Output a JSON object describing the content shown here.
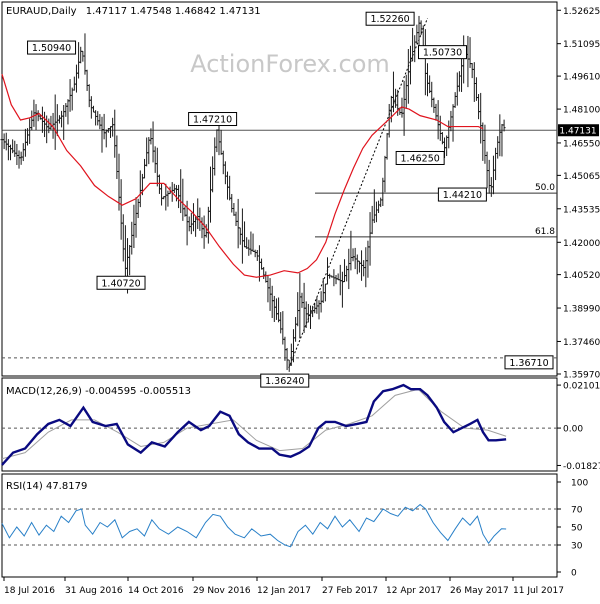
{
  "header": {
    "symbol": "EURAUD,Daily",
    "ohlc": "1.47117 1.47548 1.46842 1.47131"
  },
  "watermark": "ActionForex.com",
  "colors": {
    "background": "#ffffff",
    "bars": "#1a1a1a",
    "sma": "#e0141e",
    "macd_line": "#0a0a80",
    "macd_signal": "#a0a0a0",
    "rsi_line": "#2980c8",
    "grid": "#555555",
    "watermark": "#c8c8c8"
  },
  "chart_data": [
    {
      "type": "ohlc",
      "title": "EURAUD,Daily",
      "ylim": [
        1.3597,
        1.5282
      ],
      "yticks": [
        "1.52625",
        "1.51095",
        "1.49610",
        "1.48100",
        "1.46550",
        "1.45065",
        "1.43535",
        "1.42000",
        "1.40520",
        "1.38990",
        "1.37460",
        "1.35970"
      ],
      "current_price_label": "1.47131",
      "last_close": 1.47131,
      "moving_average": {
        "color": "#e0141e",
        "points": [
          [
            0,
            1.497
          ],
          [
            10,
            1.483
          ],
          [
            20,
            1.476
          ],
          [
            30,
            1.477
          ],
          [
            40,
            1.479
          ],
          [
            55,
            1.473
          ],
          [
            70,
            1.462
          ],
          [
            85,
            1.455
          ],
          [
            100,
            1.446
          ],
          [
            115,
            1.441
          ],
          [
            130,
            1.437
          ],
          [
            145,
            1.44
          ],
          [
            160,
            1.447
          ],
          [
            175,
            1.447
          ],
          [
            190,
            1.44
          ],
          [
            205,
            1.434
          ],
          [
            220,
            1.427
          ],
          [
            235,
            1.418
          ],
          [
            250,
            1.41
          ],
          [
            262,
            1.405
          ],
          [
            275,
            1.404
          ],
          [
            290,
            1.405
          ],
          [
            305,
            1.407
          ],
          [
            320,
            1.406
          ],
          [
            330,
            1.408
          ],
          [
            340,
            1.412
          ],
          [
            350,
            1.42
          ],
          [
            360,
            1.433
          ],
          [
            370,
            1.444
          ],
          [
            380,
            1.454
          ],
          [
            390,
            1.463
          ],
          [
            400,
            1.469
          ],
          [
            410,
            1.473
          ],
          [
            420,
            1.477
          ],
          [
            432,
            1.482
          ],
          [
            440,
            1.481
          ],
          [
            452,
            1.478
          ],
          [
            470,
            1.476
          ],
          [
            482,
            1.473
          ],
          [
            515,
            1.473
          ],
          [
            520,
            1.472
          ]
        ]
      },
      "price_path": [
        [
          0,
          1.467
        ],
        [
          20,
          1.458
        ],
        [
          35,
          1.48
        ],
        [
          50,
          1.472
        ],
        [
          65,
          1.478
        ],
        [
          78,
          1.492
        ],
        [
          86,
          1.5094
        ],
        [
          95,
          1.483
        ],
        [
          110,
          1.47
        ],
        [
          120,
          1.474
        ],
        [
          133,
          1.4072
        ],
        [
          148,
          1.44
        ],
        [
          160,
          1.47
        ],
        [
          172,
          1.44
        ],
        [
          188,
          1.445
        ],
        [
          202,
          1.427
        ],
        [
          212,
          1.432
        ],
        [
          220,
          1.421
        ],
        [
          232,
          1.4721
        ],
        [
          238,
          1.458
        ],
        [
          248,
          1.436
        ],
        [
          262,
          1.418
        ],
        [
          275,
          1.415
        ],
        [
          290,
          1.396
        ],
        [
          300,
          1.383
        ],
        [
          310,
          1.3624
        ],
        [
          322,
          1.395
        ],
        [
          330,
          1.386
        ],
        [
          345,
          1.393
        ],
        [
          352,
          1.405
        ],
        [
          368,
          1.402
        ],
        [
          378,
          1.414
        ],
        [
          392,
          1.408
        ],
        [
          400,
          1.43
        ],
        [
          410,
          1.44
        ],
        [
          420,
          1.487
        ],
        [
          432,
          1.478
        ],
        [
          440,
          1.5
        ],
        [
          452,
          1.5226
        ],
        [
          458,
          1.496
        ],
        [
          468,
          1.48
        ],
        [
          478,
          1.4625
        ],
        [
          490,
          1.487
        ],
        [
          500,
          1.5073
        ],
        [
          508,
          1.5
        ],
        [
          518,
          1.472
        ],
        [
          528,
          1.4421
        ],
        [
          534,
          1.462
        ],
        [
          540,
          1.474
        ],
        [
          545,
          1.4713
        ]
      ],
      "labels": [
        {
          "text": "1.50940",
          "x": 86,
          "y": 1.5094
        },
        {
          "text": "1.40720",
          "x": 133,
          "y": 1.4072
        },
        {
          "text": "1.47210",
          "x": 232,
          "y": 1.4721
        },
        {
          "text": "1.36240",
          "x": 310,
          "y": 1.3624
        },
        {
          "text": "1.52260",
          "x": 452,
          "y": 1.5226
        },
        {
          "text": "1.50730",
          "x": 500,
          "y": 1.5073
        },
        {
          "text": "1.46250",
          "x": 478,
          "y": 1.4625
        },
        {
          "text": "1.44210",
          "x": 528,
          "y": 1.4421
        },
        {
          "text": "1.36710",
          "x": 580,
          "y": 1.3671
        }
      ],
      "fib_levels": [
        {
          "label": "50.0",
          "value": 1.4425
        },
        {
          "label": "61.8",
          "value": 1.4225
        }
      ],
      "trendline": [
        [
          310,
          1.3624
        ],
        [
          460,
          1.5226
        ]
      ],
      "horizontal_lines": [
        {
          "value": 1.4713,
          "style": "solid"
        },
        {
          "value": 1.3671,
          "style": "dashed"
        }
      ]
    },
    {
      "type": "line",
      "title": "MACD(12,26,9) -0.004595 -0.005513",
      "ylim": [
        -0.0205,
        0.0235
      ],
      "yticks": [
        "0.021012",
        "0.00",
        "-0.018277"
      ],
      "zero_line": 0,
      "series": [
        {
          "name": "MACD",
          "values": [
            [
              0,
              -0.018
            ],
            [
              12,
              -0.012
            ],
            [
              25,
              -0.01
            ],
            [
              38,
              -0.003
            ],
            [
              50,
              0.002
            ],
            [
              62,
              0.004
            ],
            [
              74,
              0.001
            ],
            [
              88,
              0.01
            ],
            [
              98,
              0.003
            ],
            [
              112,
              0.001
            ],
            [
              124,
              0.002
            ],
            [
              136,
              -0.008
            ],
            [
              150,
              -0.012
            ],
            [
              162,
              -0.007
            ],
            [
              176,
              -0.009
            ],
            [
              190,
              -0.002
            ],
            [
              202,
              0.003
            ],
            [
              215,
              -0.001
            ],
            [
              224,
              0.001
            ],
            [
              236,
              0.008
            ],
            [
              246,
              0.006
            ],
            [
              256,
              -0.003
            ],
            [
              266,
              -0.007
            ],
            [
              278,
              -0.01
            ],
            [
              292,
              -0.01
            ],
            [
              300,
              -0.013
            ],
            [
              312,
              -0.014
            ],
            [
              322,
              -0.012
            ],
            [
              332,
              -0.009
            ],
            [
              342,
              0.0
            ],
            [
              350,
              0.003
            ],
            [
              360,
              0.003
            ],
            [
              372,
              0.001
            ],
            [
              384,
              0.002
            ],
            [
              394,
              0.003
            ],
            [
              402,
              0.013
            ],
            [
              412,
              0.018
            ],
            [
              422,
              0.019
            ],
            [
              434,
              0.021
            ],
            [
              442,
              0.019
            ],
            [
              452,
              0.019
            ],
            [
              460,
              0.016
            ],
            [
              470,
              0.01
            ],
            [
              478,
              0.003
            ],
            [
              488,
              -0.002
            ],
            [
              497,
              0.0
            ],
            [
              506,
              0.002
            ],
            [
              514,
              0.004
            ],
            [
              520,
              -0.002
            ],
            [
              526,
              -0.006
            ],
            [
              534,
              -0.006
            ],
            [
              545,
              -0.0055
            ]
          ]
        },
        {
          "name": "Signal",
          "values": [
            [
              0,
              -0.015
            ],
            [
              25,
              -0.012
            ],
            [
              50,
              -0.002
            ],
            [
              75,
              0.004
            ],
            [
              100,
              0.004
            ],
            [
              125,
              -0.002
            ],
            [
              150,
              -0.009
            ],
            [
              175,
              -0.007
            ],
            [
              200,
              0.0
            ],
            [
              225,
              0.002
            ],
            [
              250,
              0.004
            ],
            [
              275,
              -0.006
            ],
            [
              300,
              -0.011
            ],
            [
              325,
              -0.01
            ],
            [
              350,
              -0.001
            ],
            [
              375,
              0.002
            ],
            [
              400,
              0.006
            ],
            [
              425,
              0.016
            ],
            [
              450,
              0.019
            ],
            [
              475,
              0.008
            ],
            [
              500,
              0.0
            ],
            [
              525,
              -0.001
            ],
            [
              545,
              -0.004
            ]
          ]
        }
      ]
    },
    {
      "type": "line",
      "title": "RSI(14) 47.8179",
      "ylim": [
        0,
        100
      ],
      "yticks": [
        "100",
        "70",
        "50",
        "30",
        "0"
      ],
      "levels": [
        70,
        30
      ],
      "series": [
        {
          "name": "RSI(14)",
          "values": [
            [
              0,
              54
            ],
            [
              8,
              38
            ],
            [
              16,
              50
            ],
            [
              24,
              40
            ],
            [
              32,
              55
            ],
            [
              40,
              41
            ],
            [
              48,
              52
            ],
            [
              56,
              45
            ],
            [
              64,
              62
            ],
            [
              72,
              55
            ],
            [
              80,
              68
            ],
            [
              86,
              70
            ],
            [
              90,
              52
            ],
            [
              98,
              42
            ],
            [
              106,
              55
            ],
            [
              114,
              50
            ],
            [
              122,
              58
            ],
            [
              130,
              38
            ],
            [
              138,
              45
            ],
            [
              146,
              48
            ],
            [
              154,
              40
            ],
            [
              162,
              58
            ],
            [
              170,
              48
            ],
            [
              180,
              42
            ],
            [
              190,
              50
            ],
            [
              200,
              45
            ],
            [
              210,
              38
            ],
            [
              220,
              55
            ],
            [
              228,
              64
            ],
            [
              236,
              62
            ],
            [
              244,
              50
            ],
            [
              252,
              42
            ],
            [
              262,
              38
            ],
            [
              270,
              48
            ],
            [
              280,
              40
            ],
            [
              290,
              42
            ],
            [
              298,
              35
            ],
            [
              306,
              30
            ],
            [
              312,
              28
            ],
            [
              320,
              45
            ],
            [
              328,
              52
            ],
            [
              336,
              42
            ],
            [
              344,
              55
            ],
            [
              352,
              48
            ],
            [
              360,
              62
            ],
            [
              368,
              50
            ],
            [
              376,
              58
            ],
            [
              386,
              45
            ],
            [
              394,
              60
            ],
            [
              402,
              56
            ],
            [
              412,
              70
            ],
            [
              420,
              65
            ],
            [
              428,
              62
            ],
            [
              436,
              72
            ],
            [
              444,
              68
            ],
            [
              452,
              75
            ],
            [
              458,
              70
            ],
            [
              466,
              55
            ],
            [
              474,
              44
            ],
            [
              482,
              35
            ],
            [
              490,
              48
            ],
            [
              498,
              60
            ],
            [
              506,
              52
            ],
            [
              514,
              62
            ],
            [
              520,
              42
            ],
            [
              526,
              32
            ],
            [
              532,
              40
            ],
            [
              540,
              48
            ],
            [
              545,
              47.8
            ]
          ]
        }
      ]
    }
  ],
  "x_axis": {
    "domain": [
      0,
      600
    ],
    "ticks": [
      {
        "label": "18 Jul 2016",
        "x": 4
      },
      {
        "label": "31 Aug 2016",
        "x": 65
      },
      {
        "label": "14 Oct 2016",
        "x": 128
      },
      {
        "label": "29 Nov 2016",
        "x": 193
      },
      {
        "label": "12 Jan 2017",
        "x": 257
      },
      {
        "label": "27 Feb 2017",
        "x": 322
      },
      {
        "label": "12 Apr 2017",
        "x": 386
      },
      {
        "label": "26 May 2017",
        "x": 450
      },
      {
        "label": "11 Jul 2017",
        "x": 513
      }
    ]
  }
}
